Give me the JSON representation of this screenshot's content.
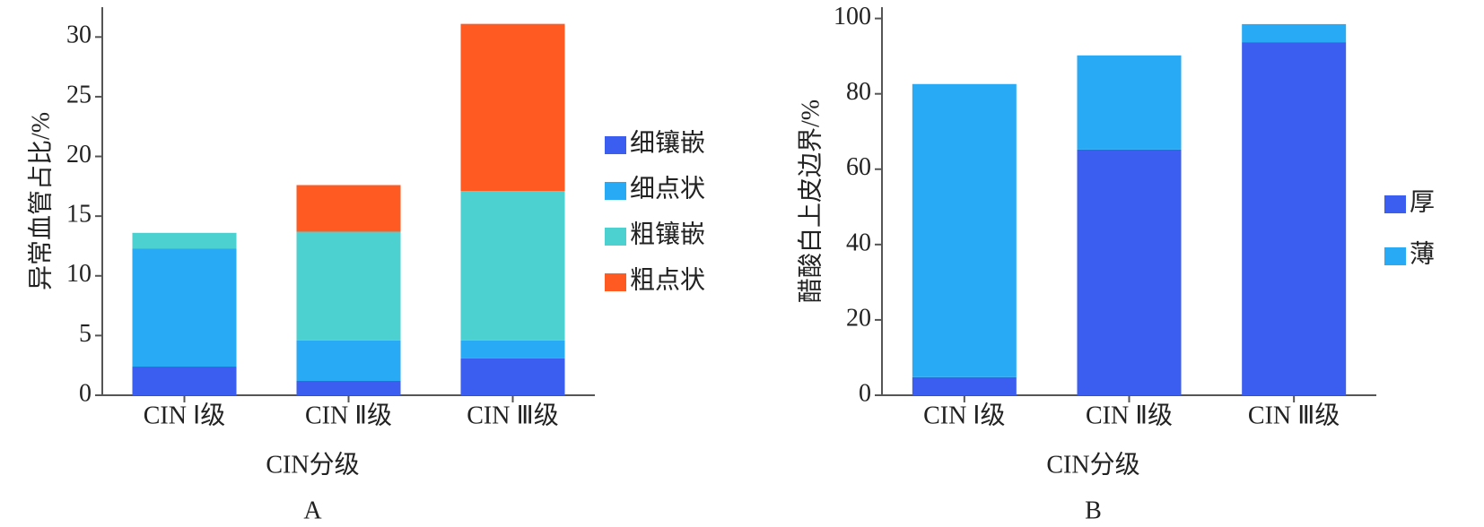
{
  "chart_data": [
    {
      "type": "stacked_bar",
      "panel": "A",
      "x_label": "CIN分级",
      "y_label": "异常血管占比/%",
      "categories": [
        "CIN Ⅰ级",
        "CIN Ⅱ级",
        "CIN Ⅲ级"
      ],
      "series": [
        {
          "name": "细镶嵌",
          "color": "#3b5ef0",
          "values": [
            2.4,
            1.2,
            3.1
          ]
        },
        {
          "name": "细点状",
          "color": "#29aaf5",
          "values": [
            9.9,
            3.4,
            1.5
          ]
        },
        {
          "name": "粗镶嵌",
          "color": "#4dd0d0",
          "values": [
            1.3,
            9.1,
            12.5
          ]
        },
        {
          "name": "粗点状",
          "color": "#ff5a22",
          "values": [
            0,
            3.9,
            14.0
          ]
        }
      ],
      "ylim": [
        0,
        32.5
      ],
      "yticks": [
        0,
        5,
        10,
        15,
        20,
        25,
        30
      ],
      "legend": "right"
    },
    {
      "type": "stacked_bar",
      "panel": "B",
      "x_label": "CIN分级",
      "y_label": "醋酸白上皮边界/%",
      "categories": [
        "CIN Ⅰ级",
        "CIN Ⅱ级",
        "CIN Ⅲ级"
      ],
      "series": [
        {
          "name": "厚",
          "color": "#3b5ef0",
          "values": [
            4.8,
            65.2,
            93.7
          ]
        },
        {
          "name": "薄",
          "color": "#29aaf5",
          "values": [
            77.8,
            25.0,
            4.8
          ]
        }
      ],
      "ylim": [
        0,
        103
      ],
      "yticks": [
        0,
        20,
        40,
        60,
        80,
        100
      ],
      "legend": "right"
    }
  ]
}
